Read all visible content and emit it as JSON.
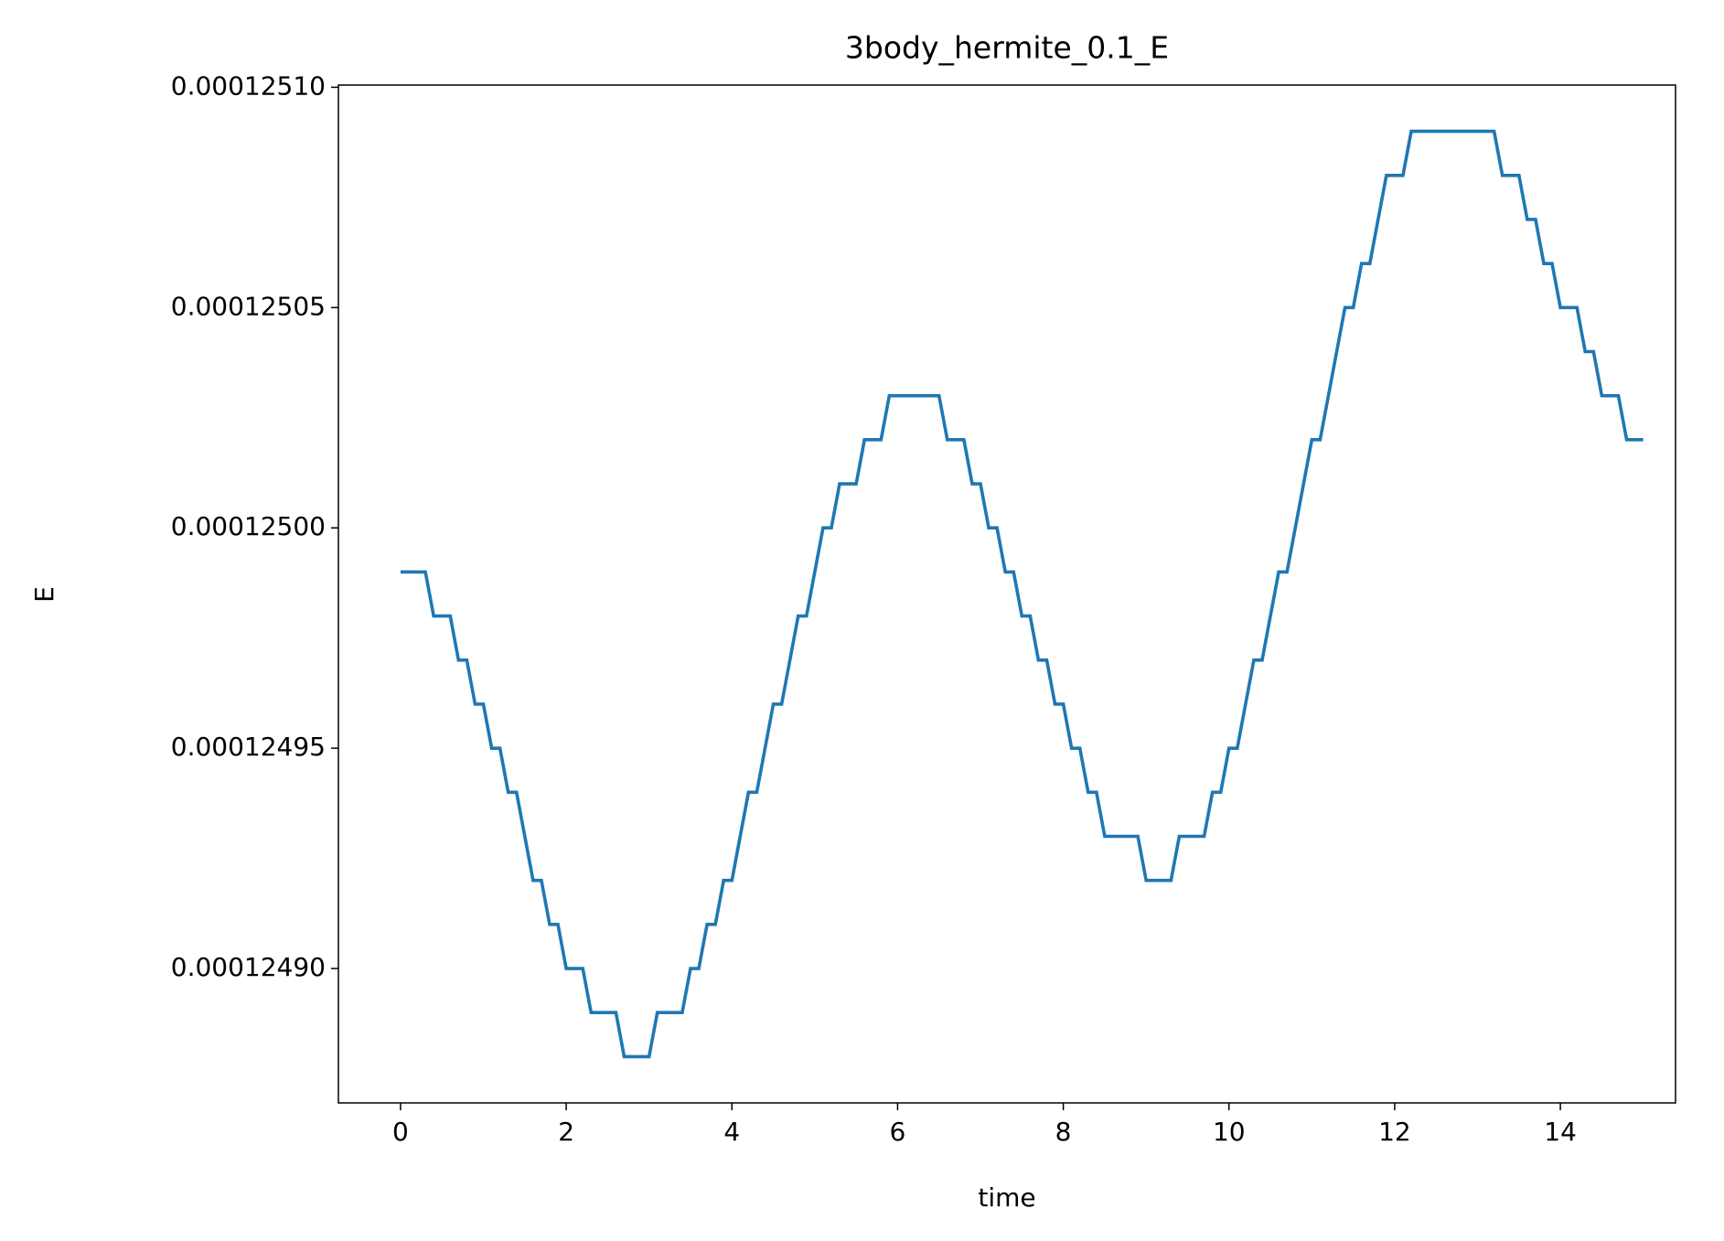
{
  "chart_data": {
    "type": "line",
    "title": "3body_hermite_0.1_E",
    "xlabel": "time",
    "ylabel": "E",
    "x": [
      0,
      0.1,
      0.2,
      0.3,
      0.4,
      0.5,
      0.6,
      0.7,
      0.8,
      0.9,
      1,
      1.1,
      1.2,
      1.3,
      1.4,
      1.5,
      1.6,
      1.7,
      1.8,
      1.9,
      2,
      2.1,
      2.2,
      2.3,
      2.4,
      2.5,
      2.6,
      2.7,
      2.8,
      2.9,
      3,
      3.1,
      3.2,
      3.3,
      3.4,
      3.5,
      3.6,
      3.7,
      3.8,
      3.9,
      4,
      4.1,
      4.2,
      4.3,
      4.4,
      4.5,
      4.6,
      4.7,
      4.8,
      4.9,
      5,
      5.1,
      5.2,
      5.3,
      5.4,
      5.5,
      5.6,
      5.7,
      5.8,
      5.9,
      6,
      6.1,
      6.2,
      6.3,
      6.4,
      6.5,
      6.6,
      6.7,
      6.8,
      6.9,
      7,
      7.1,
      7.2,
      7.3,
      7.4,
      7.5,
      7.6,
      7.7,
      7.8,
      7.9,
      8,
      8.1,
      8.2,
      8.3,
      8.4,
      8.5,
      8.6,
      8.7,
      8.8,
      8.9,
      9,
      9.1,
      9.2,
      9.3,
      9.4,
      9.5,
      9.6,
      9.7,
      9.8,
      9.9,
      10,
      10.1,
      10.2,
      10.3,
      10.4,
      10.5,
      10.6,
      10.7,
      10.8,
      10.9,
      11,
      11.1,
      11.2,
      11.3,
      11.4,
      11.5,
      11.6,
      11.7,
      11.8,
      11.9,
      12,
      12.1,
      12.2,
      12.3,
      12.4,
      12.5,
      12.6,
      12.7,
      12.8,
      12.9,
      13,
      13.1,
      13.2,
      13.3,
      13.4,
      13.5,
      13.6,
      13.7,
      13.8,
      13.9,
      14,
      14.1,
      14.2,
      14.3,
      14.4,
      14.5,
      14.6,
      14.7,
      14.8,
      14.9,
      15
    ],
    "series": [
      {
        "name": "E",
        "color": "#1f77b4",
        "values": [
          0.00012499,
          0.00012499,
          0.00012499,
          0.00012499,
          0.00012498,
          0.00012498,
          0.00012498,
          0.00012497,
          0.00012497,
          0.00012496,
          0.00012496,
          0.00012495,
          0.00012495,
          0.00012494,
          0.00012494,
          0.00012493,
          0.00012492,
          0.00012492,
          0.00012491,
          0.00012491,
          0.0001249,
          0.0001249,
          0.0001249,
          0.00012489,
          0.00012489,
          0.00012489,
          0.00012489,
          0.00012488,
          0.00012488,
          0.00012488,
          0.00012488,
          0.00012489,
          0.00012489,
          0.00012489,
          0.00012489,
          0.0001249,
          0.0001249,
          0.00012491,
          0.00012491,
          0.00012492,
          0.00012492,
          0.00012493,
          0.00012494,
          0.00012494,
          0.00012495,
          0.00012496,
          0.00012496,
          0.00012497,
          0.00012498,
          0.00012498,
          0.00012499,
          0.000125,
          0.000125,
          0.00012501,
          0.00012501,
          0.00012501,
          0.00012502,
          0.00012502,
          0.00012502,
          0.00012503,
          0.00012503,
          0.00012503,
          0.00012503,
          0.00012503,
          0.00012503,
          0.00012503,
          0.00012502,
          0.00012502,
          0.00012502,
          0.00012501,
          0.00012501,
          0.000125,
          0.000125,
          0.00012499,
          0.00012499,
          0.00012498,
          0.00012498,
          0.00012497,
          0.00012497,
          0.00012496,
          0.00012496,
          0.00012495,
          0.00012495,
          0.00012494,
          0.00012494,
          0.00012493,
          0.00012493,
          0.00012493,
          0.00012493,
          0.00012493,
          0.00012492,
          0.00012492,
          0.00012492,
          0.00012492,
          0.00012493,
          0.00012493,
          0.00012493,
          0.00012493,
          0.00012494,
          0.00012494,
          0.00012495,
          0.00012495,
          0.00012496,
          0.00012497,
          0.00012497,
          0.00012498,
          0.00012499,
          0.00012499,
          0.000125,
          0.00012501,
          0.00012502,
          0.00012502,
          0.00012503,
          0.00012504,
          0.00012505,
          0.00012505,
          0.00012506,
          0.00012506,
          0.00012507,
          0.00012508,
          0.00012508,
          0.00012508,
          0.00012509,
          0.00012509,
          0.00012509,
          0.00012509,
          0.00012509,
          0.00012509,
          0.00012509,
          0.00012509,
          0.00012509,
          0.00012509,
          0.00012509,
          0.00012508,
          0.00012508,
          0.00012508,
          0.00012507,
          0.00012507,
          0.00012506,
          0.00012506,
          0.00012505,
          0.00012505,
          0.00012505,
          0.00012504,
          0.00012504,
          0.00012503,
          0.00012503,
          0.00012503,
          0.00012502,
          0.00012502,
          0.00012502
        ]
      }
    ],
    "xlim": [
      -0.75,
      15.39
    ],
    "ylim": [
      0.0001248695,
      0.0001251005
    ],
    "xticks": [
      0,
      2,
      4,
      6,
      8,
      10,
      12,
      14
    ],
    "yticks": [
      {
        "value": 0.0001249,
        "label": "0.00012490"
      },
      {
        "value": 0.00012495,
        "label": "0.00012495"
      },
      {
        "value": 0.000125,
        "label": "0.00012500"
      },
      {
        "value": 0.00012505,
        "label": "0.00012505"
      },
      {
        "value": 0.0001251,
        "label": "0.00012510"
      }
    ],
    "grid": false
  }
}
